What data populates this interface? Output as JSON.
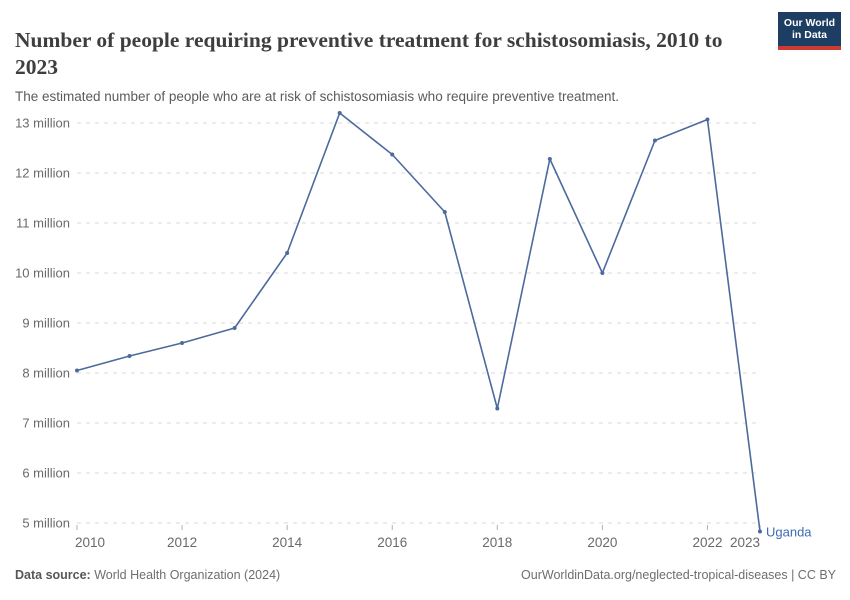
{
  "header": {
    "title": "Number of people requiring preventive treatment for schistosomiasis, 2010 to 2023",
    "subtitle": "The estimated number of people who are at risk of schistosomiasis who require preventive treatment.",
    "logo": {
      "line1": "Our World",
      "line2": "in Data"
    }
  },
  "chart_data": {
    "type": "line",
    "title": "Number of people requiring preventive treatment for schistosomiasis, 2010 to 2023",
    "xlabel": "",
    "ylabel": "",
    "unit": "million",
    "x": [
      2010,
      2011,
      2012,
      2013,
      2014,
      2015,
      2016,
      2017,
      2018,
      2019,
      2020,
      2021,
      2022,
      2023
    ],
    "series": [
      {
        "name": "Uganda",
        "values": [
          8.05,
          8.34,
          8.6,
          8.9,
          10.4,
          13.2,
          12.37,
          11.22,
          7.29,
          12.28,
          10.0,
          12.65,
          13.07,
          4.83
        ]
      }
    ],
    "y_ticks": [
      5,
      6,
      7,
      8,
      9,
      10,
      11,
      12,
      13
    ],
    "y_tick_suffix": " million",
    "x_ticks": [
      2010,
      2012,
      2014,
      2016,
      2018,
      2020,
      2022,
      2023
    ],
    "ylim": [
      4.8,
      13.25
    ],
    "xlim": [
      2010,
      2023
    ],
    "grid": "dashed horizontal",
    "legend_position": "line-end-label"
  },
  "footer": {
    "datasource_label": "Data source:",
    "datasource": " World Health Organization (2024)",
    "link": "OurWorldinData.org/neglected-tropical-diseases | CC BY"
  },
  "colors": {
    "line": "#4c6a9c",
    "entity_label": "#3d6bb5",
    "grid": "#dadada",
    "tick_mark": "#b0b0b0",
    "axis_text": "#6a6a6a",
    "title_text": "#3e3e3e",
    "subtitle_text": "#5b5b5b",
    "footer_text": "#6e6e6e",
    "logo_bg": "#1d3d63",
    "logo_stripe": "#cc3b33"
  }
}
